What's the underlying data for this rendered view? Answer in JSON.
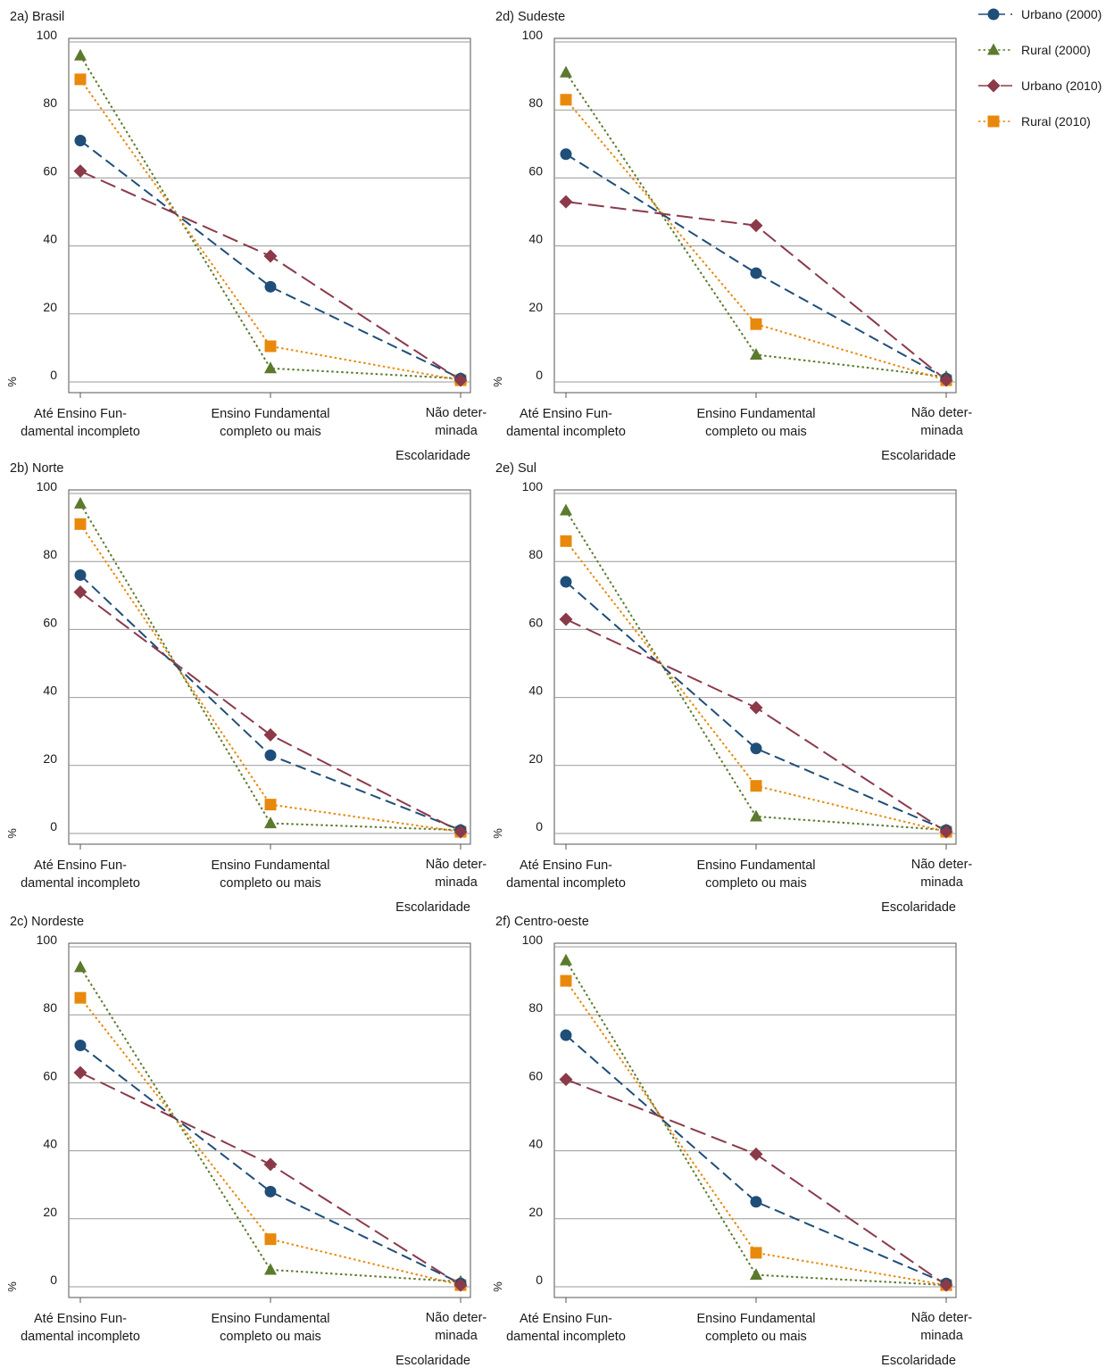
{
  "colors": {
    "urbano2000": "#1f4e79",
    "rural2000": "#5b7a2e",
    "urbano2010": "#8b3a4a",
    "rural2010": "#e8890c",
    "grid": "#999999",
    "frame": "#555555"
  },
  "legend": [
    {
      "label": "Urbano (2000)",
      "series": "urbano2000",
      "marker": "circle",
      "dash": "dash"
    },
    {
      "label": "Rural (2000)",
      "series": "rural2000",
      "marker": "triangle",
      "dash": "dot"
    },
    {
      "label": "Urbano (2010)",
      "series": "urbano2010",
      "marker": "diamond",
      "dash": "longdash"
    },
    {
      "label": "Rural (2010)",
      "series": "rural2010",
      "marker": "square",
      "dash": "dot"
    }
  ],
  "chart_data": [
    {
      "type": "line",
      "title": "2a) Brasil",
      "xlabel": "Escolaridade",
      "ylabel": "%",
      "categories": [
        [
          "Até Ensino Fun-",
          "damental incompleto"
        ],
        [
          "Ensino Fundamental",
          "completo ou mais"
        ],
        [
          "Não deter-",
          "minada"
        ]
      ],
      "yticks": [
        "0",
        "20",
        "40",
        "60",
        "80",
        "100"
      ],
      "ylim": [
        0,
        100
      ],
      "grid": true,
      "series": [
        {
          "key": "urbano2000",
          "values": [
            71,
            28,
            1
          ]
        },
        {
          "key": "rural2000",
          "values": [
            96,
            4,
            1
          ]
        },
        {
          "key": "urbano2010",
          "values": [
            62,
            37,
            0.5
          ]
        },
        {
          "key": "rural2010",
          "values": [
            89,
            10.5,
            0.5
          ]
        }
      ]
    },
    {
      "type": "line",
      "title": "2b) Norte",
      "xlabel": "Escolaridade",
      "ylabel": "%",
      "categories": [
        [
          "Até Ensino Fun-",
          "damental incompleto"
        ],
        [
          "Ensino Fundamental",
          "completo ou mais"
        ],
        [
          "Não deter-",
          "minada"
        ]
      ],
      "yticks": [
        "0",
        "20",
        "40",
        "60",
        "80",
        "100"
      ],
      "ylim": [
        0,
        100
      ],
      "grid": true,
      "series": [
        {
          "key": "urbano2000",
          "values": [
            76,
            23,
            1
          ]
        },
        {
          "key": "rural2000",
          "values": [
            97,
            3,
            1
          ]
        },
        {
          "key": "urbano2010",
          "values": [
            71,
            29,
            0.5
          ]
        },
        {
          "key": "rural2010",
          "values": [
            91,
            8.5,
            0.5
          ]
        }
      ]
    },
    {
      "type": "line",
      "title": "2c) Nordeste",
      "xlabel": "Escolaridade",
      "ylabel": "%",
      "categories": [
        [
          "Até Ensino Fun-",
          "damental incompleto"
        ],
        [
          "Ensino Fundamental",
          "completo ou mais"
        ],
        [
          "Não deter-",
          "minada"
        ]
      ],
      "yticks": [
        "0",
        "20",
        "40",
        "60",
        "80",
        "100"
      ],
      "ylim": [
        0,
        100
      ],
      "grid": true,
      "series": [
        {
          "key": "urbano2000",
          "values": [
            71,
            28,
            1
          ]
        },
        {
          "key": "rural2000",
          "values": [
            94,
            5,
            1.5
          ]
        },
        {
          "key": "urbano2010",
          "values": [
            63,
            36,
            0.5
          ]
        },
        {
          "key": "rural2010",
          "values": [
            85,
            14,
            0.5
          ]
        }
      ]
    },
    {
      "type": "line",
      "title": "2d) Sudeste",
      "xlabel": "Escolaridade",
      "ylabel": "%",
      "categories": [
        [
          "Até Ensino Fun-",
          "damental incompleto"
        ],
        [
          "Ensino Fundamental",
          "completo ou mais"
        ],
        [
          "Não deter-",
          "minada"
        ]
      ],
      "yticks": [
        "0",
        "20",
        "40",
        "60",
        "80",
        "100"
      ],
      "ylim": [
        0,
        100
      ],
      "grid": true,
      "series": [
        {
          "key": "urbano2000",
          "values": [
            67,
            32,
            1
          ]
        },
        {
          "key": "rural2000",
          "values": [
            91,
            8,
            1.5
          ]
        },
        {
          "key": "urbano2010",
          "values": [
            53,
            46,
            0.5
          ]
        },
        {
          "key": "rural2010",
          "values": [
            83,
            17,
            0.5
          ]
        }
      ]
    },
    {
      "type": "line",
      "title": "2e) Sul",
      "xlabel": "Escolaridade",
      "ylabel": "%",
      "categories": [
        [
          "Até Ensino Fun-",
          "damental incompleto"
        ],
        [
          "Ensino Fundamental",
          "completo ou mais"
        ],
        [
          "Não deter-",
          "minada"
        ]
      ],
      "yticks": [
        "0",
        "20",
        "40",
        "60",
        "80",
        "100"
      ],
      "ylim": [
        0,
        100
      ],
      "grid": true,
      "series": [
        {
          "key": "urbano2000",
          "values": [
            74,
            25,
            1
          ]
        },
        {
          "key": "rural2000",
          "values": [
            95,
            5,
            1
          ]
        },
        {
          "key": "urbano2010",
          "values": [
            63,
            37,
            0.5
          ]
        },
        {
          "key": "rural2010",
          "values": [
            86,
            14,
            0.5
          ]
        }
      ]
    },
    {
      "type": "line",
      "title": "2f) Centro-oeste",
      "xlabel": "Escolaridade",
      "ylabel": "%",
      "categories": [
        [
          "Até Ensino Fun-",
          "damental incompleto"
        ],
        [
          "Ensino Fundamental",
          "completo ou mais"
        ],
        [
          "Não deter-",
          "minada"
        ]
      ],
      "yticks": [
        "0",
        "20",
        "40",
        "60",
        "80",
        "100"
      ],
      "ylim": [
        0,
        100
      ],
      "grid": true,
      "series": [
        {
          "key": "urbano2000",
          "values": [
            74,
            25,
            1
          ]
        },
        {
          "key": "rural2000",
          "values": [
            96,
            3.5,
            0.5
          ]
        },
        {
          "key": "urbano2010",
          "values": [
            61,
            39,
            0.5
          ]
        },
        {
          "key": "rural2010",
          "values": [
            90,
            10,
            0.5
          ]
        }
      ]
    }
  ]
}
